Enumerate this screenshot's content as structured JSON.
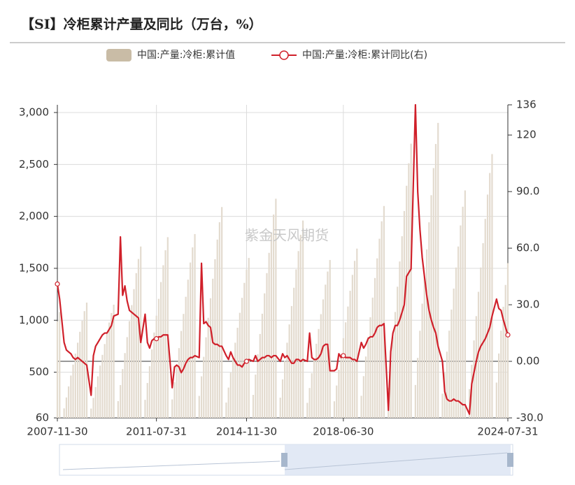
{
  "chart_data": {
    "type": "bar-line",
    "title": "【SI】冷柜累计产量及同比（万台，%）",
    "watermark": "紫金天风期货",
    "x": [
      "2007-11-30",
      "2007-12-31",
      "2008-02-29",
      "2008-03-31",
      "2008-04-30",
      "2008-05-31",
      "2008-06-30",
      "2008-07-31",
      "2008-08-31",
      "2008-09-30",
      "2008-10-31",
      "2008-11-30",
      "2008-12-31",
      "2009-02-28",
      "2009-03-31",
      "2009-04-30",
      "2009-05-31",
      "2009-06-30",
      "2009-07-31",
      "2009-08-31",
      "2009-09-30",
      "2009-10-31",
      "2009-11-30",
      "2009-12-31",
      "2010-02-28",
      "2010-03-31",
      "2010-04-30",
      "2010-05-31",
      "2010-06-30",
      "2010-07-31",
      "2010-08-31",
      "2010-09-30",
      "2010-10-31",
      "2010-11-30",
      "2010-12-31",
      "2011-02-28",
      "2011-03-31",
      "2011-04-30",
      "2011-05-31",
      "2011-06-30",
      "2011-07-31",
      "2011-08-31",
      "2011-09-30",
      "2011-10-31",
      "2011-11-30",
      "2011-12-31",
      "2012-02-29",
      "2012-03-31",
      "2012-04-30",
      "2012-05-31",
      "2012-06-30",
      "2012-07-31",
      "2012-08-31",
      "2012-09-30",
      "2012-10-31",
      "2012-11-30",
      "2012-12-31",
      "2013-02-28",
      "2013-03-31",
      "2013-04-30",
      "2013-05-31",
      "2013-06-30",
      "2013-07-31",
      "2013-08-31",
      "2013-09-30",
      "2013-10-31",
      "2013-11-30",
      "2013-12-31",
      "2014-02-28",
      "2014-03-31",
      "2014-04-30",
      "2014-05-31",
      "2014-06-30",
      "2014-07-31",
      "2014-08-31",
      "2014-09-30",
      "2014-10-31",
      "2014-11-30",
      "2014-12-31",
      "2015-02-28",
      "2015-03-31",
      "2015-04-30",
      "2015-05-31",
      "2015-06-30",
      "2015-07-31",
      "2015-08-31",
      "2015-09-30",
      "2015-10-31",
      "2015-11-30",
      "2015-12-31",
      "2016-02-29",
      "2016-03-31",
      "2016-04-30",
      "2016-05-31",
      "2016-06-30",
      "2016-07-31",
      "2016-08-31",
      "2016-09-30",
      "2016-10-31",
      "2016-11-30",
      "2016-12-31",
      "2017-02-28",
      "2017-03-31",
      "2017-04-30",
      "2017-05-31",
      "2017-06-30",
      "2017-07-31",
      "2017-08-31",
      "2017-09-30",
      "2017-10-31",
      "2017-11-30",
      "2017-12-31",
      "2018-02-28",
      "2018-03-31",
      "2018-04-30",
      "2018-05-31",
      "2018-06-30",
      "2018-07-31",
      "2018-08-31",
      "2018-09-30",
      "2018-10-31",
      "2018-11-30",
      "2018-12-31",
      "2019-02-28",
      "2019-03-31",
      "2019-04-30",
      "2019-05-31",
      "2019-06-30",
      "2019-07-31",
      "2019-08-31",
      "2019-09-30",
      "2019-10-31",
      "2019-11-30",
      "2019-12-31",
      "2020-02-29",
      "2020-03-31",
      "2020-04-30",
      "2020-05-31",
      "2020-06-30",
      "2020-07-31",
      "2020-08-31",
      "2020-09-30",
      "2020-10-31",
      "2020-11-30",
      "2020-12-31",
      "2021-02-28",
      "2021-03-31",
      "2021-04-30",
      "2021-05-31",
      "2021-06-30",
      "2021-07-31",
      "2021-08-31",
      "2021-09-30",
      "2021-10-31",
      "2021-11-30",
      "2021-12-31",
      "2022-02-28",
      "2022-03-31",
      "2022-04-30",
      "2022-05-31",
      "2022-06-30",
      "2022-07-31",
      "2022-08-31",
      "2022-09-30",
      "2022-10-31",
      "2022-11-30",
      "2022-12-31",
      "2023-02-28",
      "2023-03-31",
      "2023-04-30",
      "2023-05-31",
      "2023-06-30",
      "2023-07-31",
      "2023-08-31",
      "2023-09-30",
      "2023-10-31",
      "2023-11-30",
      "2023-12-31",
      "2024-02-29",
      "2024-03-31",
      "2024-04-30",
      "2024-05-31",
      "2024-06-30",
      "2024-07-31"
    ],
    "series": [
      {
        "name": "中国:产量:冷柜:累计值",
        "type": "bar",
        "color": "#e3dbcf",
        "legend_color": "#c9bca6",
        "values": [
          990,
          1080,
          152,
          257,
          363,
          468,
          573,
          679,
          784,
          889,
          995,
          1088,
          1170,
          150,
          253,
          357,
          460,
          564,
          667,
          771,
          874,
          978,
          1070,
          1150,
          222,
          376,
          530,
          684,
          838,
          992,
          1146,
          1300,
          1454,
          1590,
          1710,
          234,
          396,
          558,
          720,
          882,
          1044,
          1206,
          1368,
          1530,
          1674,
          1800,
          238,
          403,
          567,
          732,
          897,
          1061,
          1226,
          1391,
          1556,
          1702,
          1830,
          272,
          460,
          648,
          836,
          1024,
          1212,
          1400,
          1588,
          1777,
          1944,
          2090,
          208,
          352,
          496,
          640,
          784,
          928,
          1072,
          1216,
          1360,
          1488,
          1600,
          282,
          477,
          673,
          868,
          1063,
          1259,
          1454,
          1649,
          1845,
          2018,
          2170,
          255,
          431,
          608,
          784,
          960,
          1137,
          1313,
          1490,
          1666,
          1823,
          1960,
          205,
          348,
          490,
          632,
          774,
          916,
          1059,
          1201,
          1343,
          1469,
          1580,
          220,
          372,
          524,
          676,
          828,
          980,
          1132,
          1284,
          1437,
          1572,
          1690,
          273,
          462,
          651,
          840,
          1029,
          1218,
          1407,
          1596,
          1785,
          1953,
          2100,
          351,
          594,
          837,
          1080,
          1323,
          1566,
          1809,
          2052,
          2295,
          2511,
          2700,
          377,
          638,
          899,
          1160,
          1421,
          1682,
          1943,
          2204,
          2465,
          2697,
          2900,
          293,
          495,
          698,
          900,
          1103,
          1305,
          1508,
          1710,
          1913,
          2093,
          2250,
          338,
          572,
          806,
          1040,
          1274,
          1508,
          1742,
          1976,
          2210,
          2418,
          2600,
          400,
          680,
          900,
          1130,
          1340,
          1550
        ]
      },
      {
        "name": "中国:产量:冷柜:累计同比(右)",
        "type": "line",
        "axis": "y2",
        "color": "#d0202a",
        "values": [
          41,
          33,
          10,
          6,
          5,
          4,
          2,
          1,
          2,
          1,
          0,
          -1,
          -2,
          -18,
          3,
          8,
          10,
          12,
          14,
          15,
          15,
          17,
          19,
          24,
          25,
          66,
          35,
          40,
          32,
          27,
          26,
          25,
          24,
          23,
          10,
          25,
          10,
          7,
          11,
          12,
          12,
          13,
          13,
          14,
          14,
          14,
          -14,
          -3,
          -2,
          -3,
          -6,
          -4,
          -1,
          1,
          2,
          2,
          3,
          2,
          52,
          20,
          21,
          19,
          18,
          10,
          9,
          9,
          8,
          8,
          3,
          1,
          5,
          2,
          0,
          -2,
          -2,
          -3,
          -1,
          0,
          1,
          0,
          3,
          0,
          1,
          2,
          2,
          3,
          3,
          2,
          3,
          3,
          0,
          4,
          2,
          3,
          1,
          -1,
          -1,
          1,
          1,
          0,
          1,
          0,
          15,
          2,
          1,
          1,
          2,
          4,
          8,
          9,
          9,
          -5,
          -5,
          -4,
          4,
          2,
          3,
          2,
          2,
          2,
          1,
          1,
          0,
          10,
          7,
          9,
          12,
          13,
          13,
          15,
          18,
          19,
          19,
          20,
          -26,
          5,
          15,
          19,
          19,
          22,
          26,
          30,
          45,
          47,
          49,
          136,
          90,
          70,
          55,
          45,
          35,
          27,
          22,
          18,
          15,
          8,
          0,
          -16,
          -20,
          -21,
          -21,
          -20,
          -21,
          -21,
          -22,
          -23,
          -23,
          -28,
          -12,
          -6,
          0,
          5,
          8,
          10,
          12,
          15,
          18,
          24,
          33,
          28,
          27,
          22,
          18,
          14
        ]
      }
    ],
    "xlim": [
      "2007-11-30",
      "2024-07-31"
    ],
    "xticks": [
      "2007-11-30",
      "2011-07-31",
      "2014-11-30",
      "2018-06-30",
      "2024-07-31"
    ],
    "ylim": [
      60,
      3074
    ],
    "yticks": [
      60,
      500,
      {
        "value": 1000,
        "label": "1,000"
      },
      {
        "value": 1500,
        "label": "1,500"
      },
      {
        "value": 2000,
        "label": "2,000"
      },
      {
        "value": 2500,
        "label": "2,500"
      },
      {
        "value": 3000,
        "label": "3,000"
      }
    ],
    "y2lim": [
      -30,
      136
    ],
    "y2ticks": [
      {
        "value": -30,
        "label": "-30.0"
      },
      {
        "value": 0,
        "label": "0.00"
      },
      {
        "value": 30,
        "label": "30.0"
      },
      {
        "value": 60,
        "label": "60.0"
      },
      {
        "value": 90,
        "label": "90.0"
      },
      120,
      136
    ],
    "grid": true
  }
}
